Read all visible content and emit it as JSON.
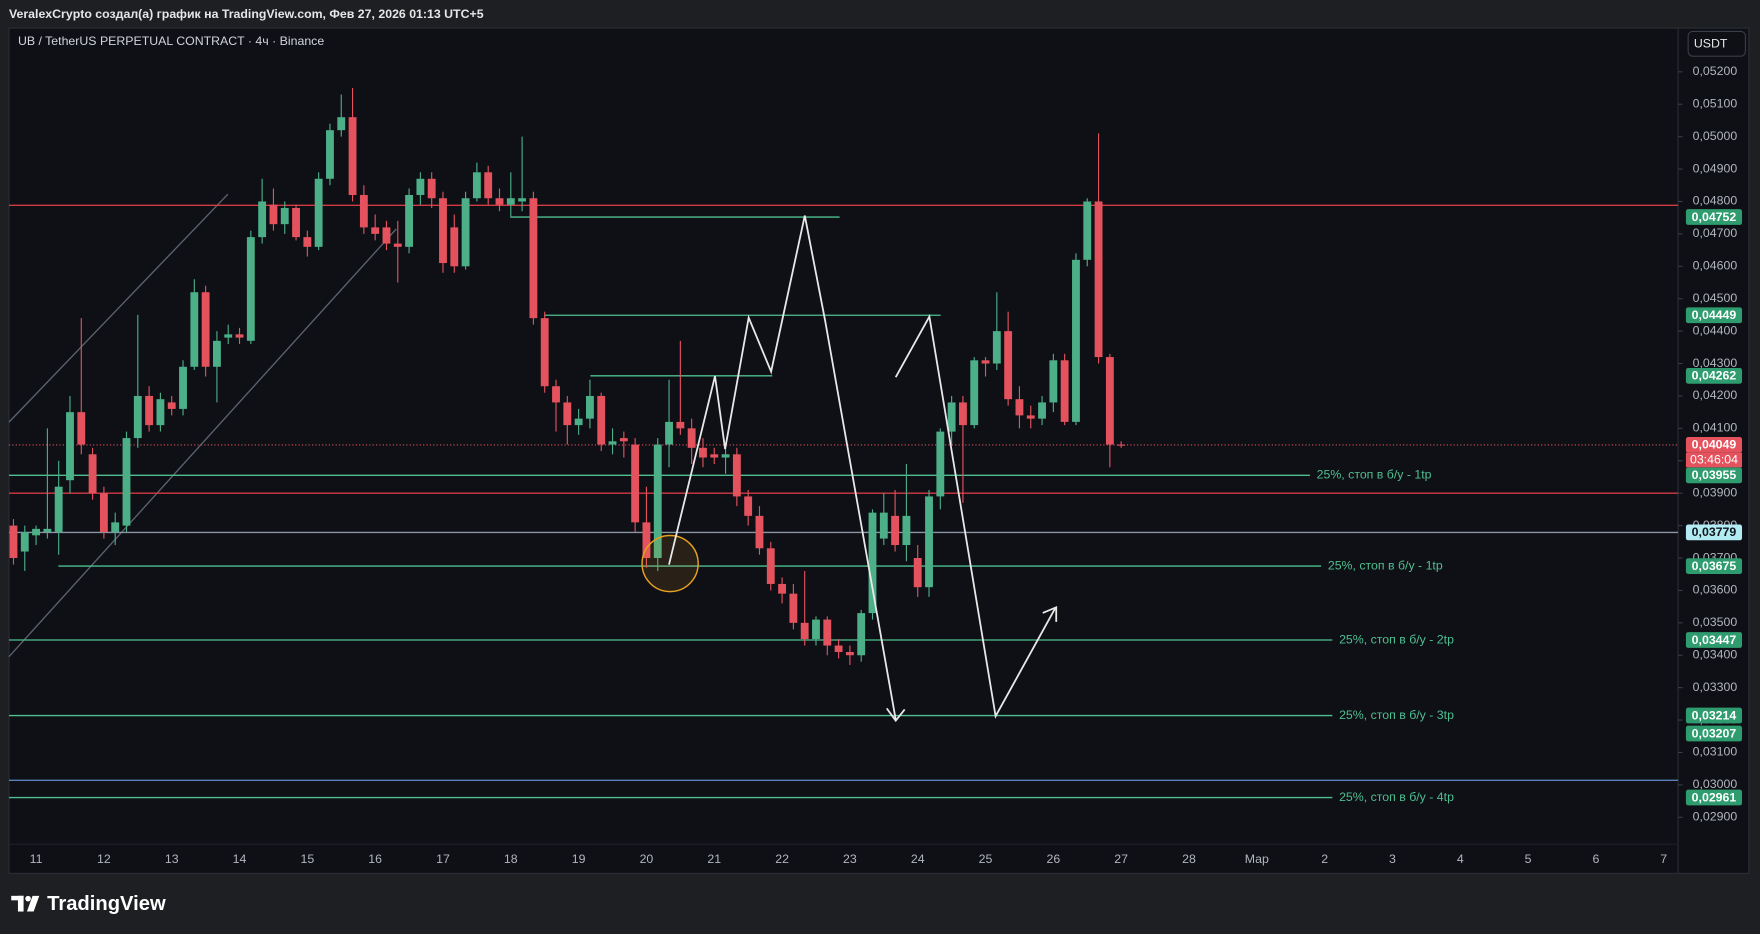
{
  "header": {
    "title": "VeralexCrypto создал(а) график на TradingView.com, Фев 27, 2026 01:13 UTC+5"
  },
  "chart_data": {
    "type": "candlestick",
    "title": "UB / TetherUS PERPETUAL CONTRACT · 4ч · Binance",
    "currency": "USDT",
    "up_color": "#4caf88",
    "down_color": "#e4525e",
    "candles": [
      [
        0.038,
        0.0382,
        0.0368,
        0.037
      ],
      [
        0.0372,
        0.038,
        0.0366,
        0.0378
      ],
      [
        0.0377,
        0.038,
        0.0374,
        0.0379
      ],
      [
        0.0378,
        0.041,
        0.0376,
        0.0379
      ],
      [
        0.0378,
        0.04,
        0.0371,
        0.0392
      ],
      [
        0.0394,
        0.042,
        0.039,
        0.0415
      ],
      [
        0.0415,
        0.0444,
        0.0402,
        0.0405
      ],
      [
        0.0402,
        0.0404,
        0.0388,
        0.039
      ],
      [
        0.039,
        0.0392,
        0.0376,
        0.0378
      ],
      [
        0.0378,
        0.0384,
        0.0374,
        0.0381
      ],
      [
        0.038,
        0.0409,
        0.0378,
        0.0407
      ],
      [
        0.0407,
        0.0445,
        0.0404,
        0.042
      ],
      [
        0.042,
        0.0423,
        0.0409,
        0.0411
      ],
      [
        0.0411,
        0.0421,
        0.0409,
        0.0419
      ],
      [
        0.0418,
        0.042,
        0.0414,
        0.0416
      ],
      [
        0.0416,
        0.0431,
        0.0414,
        0.0429
      ],
      [
        0.0429,
        0.0456,
        0.0428,
        0.0452
      ],
      [
        0.0452,
        0.0454,
        0.0426,
        0.0429
      ],
      [
        0.0429,
        0.044,
        0.0418,
        0.0437
      ],
      [
        0.0438,
        0.0442,
        0.0436,
        0.0439
      ],
      [
        0.0439,
        0.0441,
        0.0436,
        0.0438
      ],
      [
        0.0437,
        0.0471,
        0.0436,
        0.0469
      ],
      [
        0.0469,
        0.0487,
        0.0467,
        0.048
      ],
      [
        0.0479,
        0.0484,
        0.0471,
        0.0473
      ],
      [
        0.0473,
        0.048,
        0.047,
        0.0478
      ],
      [
        0.0478,
        0.0479,
        0.0468,
        0.0469
      ],
      [
        0.0469,
        0.0471,
        0.0463,
        0.0466
      ],
      [
        0.0466,
        0.0489,
        0.0465,
        0.0487
      ],
      [
        0.0487,
        0.0504,
        0.0485,
        0.0502
      ],
      [
        0.0502,
        0.0513,
        0.05,
        0.0506
      ],
      [
        0.0506,
        0.0515,
        0.048,
        0.0482
      ],
      [
        0.0482,
        0.0485,
        0.047,
        0.0472
      ],
      [
        0.0472,
        0.0476,
        0.0468,
        0.047
      ],
      [
        0.0472,
        0.0474,
        0.0465,
        0.0467
      ],
      [
        0.0467,
        0.0474,
        0.0455,
        0.0466
      ],
      [
        0.0466,
        0.0484,
        0.0464,
        0.0482
      ],
      [
        0.0482,
        0.0489,
        0.0479,
        0.0487
      ],
      [
        0.0487,
        0.0489,
        0.0478,
        0.0481
      ],
      [
        0.0481,
        0.0483,
        0.0458,
        0.0461
      ],
      [
        0.0472,
        0.0476,
        0.0458,
        0.046
      ],
      [
        0.046,
        0.0483,
        0.0459,
        0.0481
      ],
      [
        0.0481,
        0.0492,
        0.048,
        0.0489
      ],
      [
        0.0489,
        0.0491,
        0.0479,
        0.0481
      ],
      [
        0.0481,
        0.0484,
        0.0477,
        0.0479
      ],
      [
        0.0479,
        0.0489,
        0.0475,
        0.0481
      ],
      [
        0.048,
        0.05,
        0.0477,
        0.0481
      ],
      [
        0.0481,
        0.0483,
        0.0442,
        0.0444
      ],
      [
        0.0444,
        0.0446,
        0.0421,
        0.0423
      ],
      [
        0.0423,
        0.0425,
        0.0409,
        0.0418
      ],
      [
        0.0418,
        0.042,
        0.0405,
        0.0411
      ],
      [
        0.0411,
        0.0416,
        0.0408,
        0.0413
      ],
      [
        0.0413,
        0.0425,
        0.041,
        0.042
      ],
      [
        0.042,
        0.0421,
        0.0403,
        0.0405
      ],
      [
        0.0405,
        0.041,
        0.0402,
        0.0406
      ],
      [
        0.0407,
        0.0409,
        0.0401,
        0.0406
      ],
      [
        0.0405,
        0.0407,
        0.0378,
        0.0381
      ],
      [
        0.0381,
        0.0392,
        0.0367,
        0.037
      ],
      [
        0.037,
        0.0407,
        0.0366,
        0.0405
      ],
      [
        0.0405,
        0.0425,
        0.0398,
        0.0412
      ],
      [
        0.0412,
        0.0437,
        0.0408,
        0.041
      ],
      [
        0.041,
        0.0413,
        0.0399,
        0.0404
      ],
      [
        0.0404,
        0.0407,
        0.0398,
        0.0401
      ],
      [
        0.0402,
        0.0404,
        0.0399,
        0.0401
      ],
      [
        0.0401,
        0.0404,
        0.0396,
        0.0402
      ],
      [
        0.0402,
        0.0404,
        0.0386,
        0.0389
      ],
      [
        0.0389,
        0.0391,
        0.038,
        0.0383
      ],
      [
        0.0383,
        0.0386,
        0.0371,
        0.0373
      ],
      [
        0.0373,
        0.0375,
        0.036,
        0.0362
      ],
      [
        0.0362,
        0.0364,
        0.0356,
        0.0359
      ],
      [
        0.0359,
        0.0362,
        0.0348,
        0.035
      ],
      [
        0.035,
        0.0366,
        0.0343,
        0.0345
      ],
      [
        0.0345,
        0.0352,
        0.0343,
        0.0351
      ],
      [
        0.0351,
        0.0352,
        0.034,
        0.0343
      ],
      [
        0.0343,
        0.0345,
        0.0339,
        0.0341
      ],
      [
        0.0341,
        0.0343,
        0.0337,
        0.034
      ],
      [
        0.034,
        0.0354,
        0.0338,
        0.0353
      ],
      [
        0.0353,
        0.0385,
        0.0351,
        0.0384
      ],
      [
        0.0376,
        0.039,
        0.0374,
        0.0384
      ],
      [
        0.0383,
        0.0391,
        0.0372,
        0.0374
      ],
      [
        0.0374,
        0.0399,
        0.0369,
        0.0383
      ],
      [
        0.037,
        0.0374,
        0.0358,
        0.0361
      ],
      [
        0.0361,
        0.0391,
        0.0358,
        0.0389
      ],
      [
        0.0389,
        0.041,
        0.0385,
        0.0409
      ],
      [
        0.0409,
        0.042,
        0.0405,
        0.0418
      ],
      [
        0.0418,
        0.042,
        0.0387,
        0.0411
      ],
      [
        0.0411,
        0.0432,
        0.041,
        0.0431
      ],
      [
        0.0431,
        0.0432,
        0.0426,
        0.043
      ],
      [
        0.043,
        0.0452,
        0.0428,
        0.044
      ],
      [
        0.044,
        0.0446,
        0.0417,
        0.0419
      ],
      [
        0.0419,
        0.0423,
        0.041,
        0.0414
      ],
      [
        0.0414,
        0.0417,
        0.041,
        0.0413
      ],
      [
        0.0413,
        0.042,
        0.0411,
        0.0418
      ],
      [
        0.0418,
        0.0433,
        0.0415,
        0.0431
      ],
      [
        0.0431,
        0.0433,
        0.0411,
        0.0412
      ],
      [
        0.0412,
        0.0464,
        0.0411,
        0.0462
      ],
      [
        0.0462,
        0.0481,
        0.046,
        0.048
      ],
      [
        0.048,
        0.0501,
        0.043,
        0.0432
      ],
      [
        0.0432,
        0.0433,
        0.0398,
        0.0405
      ],
      [
        0.0405,
        0.0406,
        0.0404,
        0.04049
      ]
    ],
    "x_labels": [
      "11",
      "12",
      "13",
      "14",
      "15",
      "16",
      "17",
      "18",
      "19",
      "20",
      "21",
      "22",
      "23",
      "24",
      "25",
      "26",
      "27",
      "28",
      "Мар",
      "2",
      "3",
      "4",
      "5",
      "6",
      "7"
    ],
    "ylim": [
      0.02727,
      0.05335
    ],
    "yticks": [
      {
        "value": 0.052,
        "label": "0,05200"
      },
      {
        "value": 0.051,
        "label": "0,05100"
      },
      {
        "value": 0.05,
        "label": "0,05000"
      },
      {
        "value": 0.049,
        "label": "0,04900"
      },
      {
        "value": 0.048,
        "label": "0,04800"
      },
      {
        "value": 0.047,
        "label": "0,04700"
      },
      {
        "value": 0.046,
        "label": "0,04600"
      },
      {
        "value": 0.045,
        "label": "0,04500"
      },
      {
        "value": 0.044,
        "label": "0,04400"
      },
      {
        "value": 0.043,
        "label": "0,04300"
      },
      {
        "value": 0.042,
        "label": "0,04200"
      },
      {
        "value": 0.041,
        "label": "0,04100"
      },
      {
        "value": 0.04,
        "label": "0,04000"
      },
      {
        "value": 0.039,
        "label": "0,03900"
      },
      {
        "value": 0.038,
        "label": "0,03800"
      },
      {
        "value": 0.037,
        "label": "0,03700"
      },
      {
        "value": 0.036,
        "label": "0,03600"
      },
      {
        "value": 0.035,
        "label": "0,03500"
      },
      {
        "value": 0.034,
        "label": "0,03400"
      },
      {
        "value": 0.033,
        "label": "0,03300"
      },
      {
        "value": 0.032,
        "label": "0,03200"
      },
      {
        "value": 0.031,
        "label": "0,03100"
      },
      {
        "value": 0.03,
        "label": "0,03000"
      },
      {
        "value": 0.029,
        "label": "0,02900"
      }
    ],
    "levels": [
      {
        "value": 0.04788,
        "color": "#d23a44"
      },
      {
        "value": 0.04752,
        "label": "0,04752",
        "color": "#4fbf8f"
      },
      {
        "value": 0.04449,
        "label": "0,04449",
        "color": "#4fbf8f"
      },
      {
        "value": 0.04262,
        "label": "0,04262",
        "color": "#4fbf8f"
      },
      {
        "value": 0.04049,
        "label": "0,04049",
        "countdown": "03:46:04",
        "color": "#e4525e",
        "line_style": "dotted"
      },
      {
        "value": 0.03955,
        "label": "0,03955",
        "text": "25%, стоп в б/у - 1tp",
        "color": "#4fbf8f"
      },
      {
        "value": 0.039,
        "color": "#d23a44"
      },
      {
        "value": 0.03779,
        "label": "0,03779",
        "color": "#8a97a3",
        "badge_color": "#b2ebf2"
      },
      {
        "value": 0.03675,
        "label": "0,03675",
        "text": "25%, стоп в б/у - 1tp",
        "color": "#4fbf8f"
      },
      {
        "value": 0.03447,
        "label": "0,03447",
        "text": "25%, стоп в б/у - 2tp",
        "color": "#4fbf8f"
      },
      {
        "value": 0.03214,
        "label": "0,03214",
        "text": "25%, стоп в б/у - 3tp",
        "color": "#4fbf8f"
      },
      {
        "value": 0.03207,
        "label": "0,03207",
        "color": "#4fbf8f"
      },
      {
        "value": 0.03014,
        "color": "#5b7fb8"
      },
      {
        "value": 0.02961,
        "label": "0,02961",
        "text": "25%, стоп в б/у - 4tp",
        "color": "#4fbf8f"
      }
    ]
  },
  "footer": {
    "brand": "TradingView"
  }
}
